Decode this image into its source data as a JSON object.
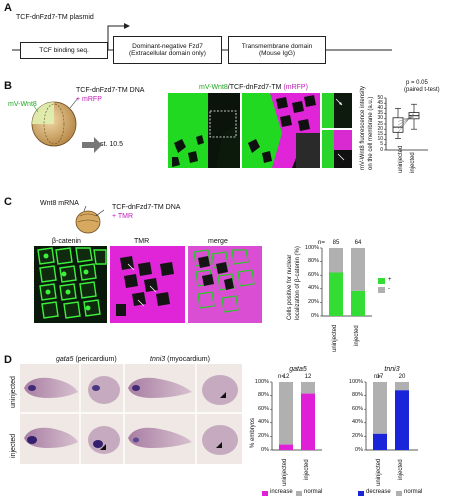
{
  "panelA": {
    "label": "A",
    "title": "TCF-dnFzd7-TM plasmid",
    "box1": "TCF binding seq.",
    "box2_line1": "Dominant-negative Fzd7",
    "box2_line2": "(Extracellular domain only)",
    "box3_line1": "Transmembrane domain",
    "box3_line2": "(Mouse IgG)"
  },
  "panelB": {
    "label": "B",
    "mvwnt8": "mV-Wnt8",
    "dna": "TCF-dnFzd7-TM DNA",
    "plus_mrfp": "+ mRFP",
    "stage": "st. 10.5",
    "img_title_green": "mV-Wnt8",
    "img_title_sep": "/",
    "img_title_dark": "TCF-dnFzd7-TM",
    "img_title_mag": "(mRFP)",
    "pvalue": "p = 0.05",
    "test": "(paired t-test)",
    "ylabel_line1": "mV-Wnt8 fluorescence intensity",
    "ylabel_line2": "on the cell membrane (a.u.)",
    "yticks": [
      "50",
      "45",
      "40",
      "35",
      "30",
      "25",
      "20",
      "15",
      "10",
      "5",
      "0"
    ],
    "xcats": [
      "uninjected",
      "injected"
    ]
  },
  "panelC": {
    "label": "C",
    "wnt8": "Wnt8 mRNA",
    "dna": "TCF-dnFzd7-TM DNA",
    "plus_tmr": "+ TMR",
    "img1": "β-catenin",
    "img2": "TMR",
    "img3": "merge",
    "n_label": "n=",
    "ylabel_line1": "Cells positive for nuclear",
    "ylabel_line2": "localization of β-catenin (%)",
    "legend_plus": "+",
    "legend_minus": "-"
  },
  "panelD": {
    "label": "D",
    "gene1": "gata5",
    "gene1_desc": " (pericardium)",
    "gene2": "tnni3",
    "gene2_desc": " (myocardium)",
    "row1": "uninjected",
    "row2": "injected",
    "ylabel": "% embryos",
    "n_label": "n=",
    "legend1_a": "increase",
    "legend1_b": "normal",
    "legend2_a": "decrease",
    "legend2_b": "normal"
  },
  "chart_data": [
    {
      "type": "box",
      "panel": "B",
      "categories": [
        "uninjected",
        "injected"
      ],
      "ylim": [
        0,
        50
      ],
      "ytick_step": 5,
      "ylabel": "mV-Wnt8 fluorescence intensity on the cell membrane (a.u.)",
      "title": "p = 0.05 (paired t-test)",
      "boxes": [
        {
          "name": "uninjected",
          "whisker_low": 11,
          "q1": 17,
          "median": 22,
          "q3": 31,
          "whisker_high": 40
        },
        {
          "name": "injected",
          "whisker_low": 20,
          "q1": 30,
          "median": 33,
          "q3": 36,
          "whisker_high": 44
        }
      ]
    },
    {
      "type": "bar",
      "stacked": true,
      "panel": "C",
      "categories": [
        "uninjected",
        "injected"
      ],
      "n": [
        "85",
        "64"
      ],
      "ylim": [
        0,
        100
      ],
      "yticks": [
        "0%",
        "20%",
        "40%",
        "60%",
        "80%",
        "100%"
      ],
      "series": [
        {
          "name": "+",
          "color": "#33dd33",
          "values": [
            64,
            37
          ]
        },
        {
          "name": "-",
          "color": "#b0b0b0",
          "values": [
            36,
            63
          ]
        }
      ]
    },
    {
      "type": "bar",
      "stacked": true,
      "panel": "D",
      "title": "gata5",
      "categories": [
        "uninjected",
        "injected"
      ],
      "n": [
        "12",
        "12"
      ],
      "ylim": [
        0,
        100
      ],
      "yticks": [
        "0%",
        "20%",
        "40%",
        "60%",
        "80%",
        "100%"
      ],
      "series": [
        {
          "name": "increase",
          "color": "#e020d6",
          "values": [
            8,
            83
          ]
        },
        {
          "name": "normal",
          "color": "#b0b0b0",
          "values": [
            92,
            17
          ]
        }
      ]
    },
    {
      "type": "bar",
      "stacked": true,
      "panel": "D",
      "title": "tnni3",
      "categories": [
        "uninjected",
        "injected"
      ],
      "n": [
        "17",
        "20"
      ],
      "ylim": [
        0,
        100
      ],
      "yticks": [
        "0%",
        "20%",
        "40%",
        "60%",
        "80%",
        "100%"
      ],
      "series": [
        {
          "name": "decrease",
          "color": "#1a24d8",
          "values": [
            24,
            88
          ]
        },
        {
          "name": "normal",
          "color": "#b0b0b0",
          "values": [
            76,
            12
          ]
        }
      ]
    }
  ]
}
